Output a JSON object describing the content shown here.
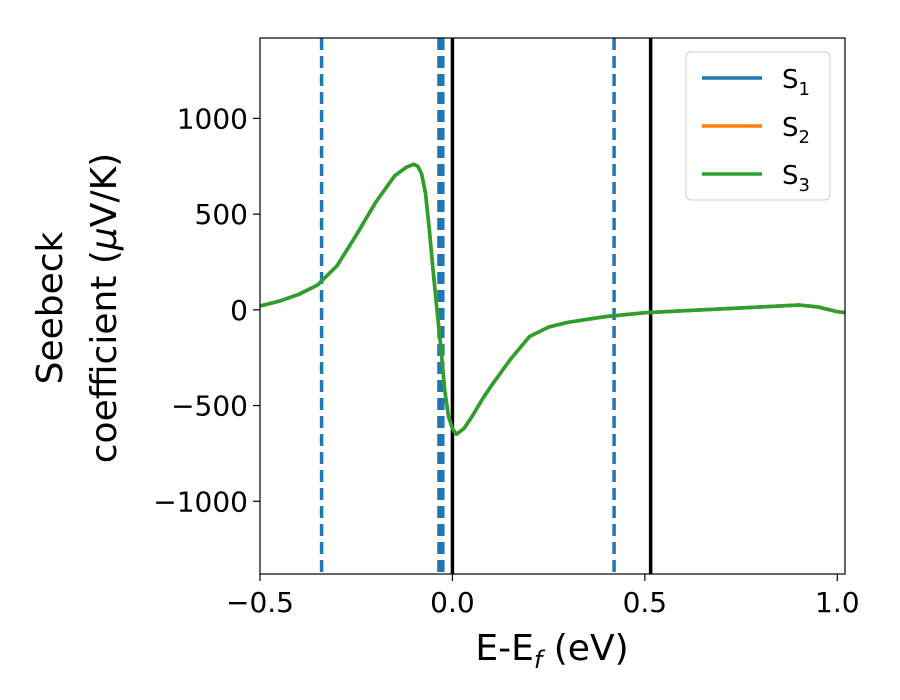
{
  "chart_data": {
    "type": "line",
    "xlabel": {
      "main": "E-E",
      "sub": "f",
      "suffix": " (eV)"
    },
    "ylabel": {
      "line1": "Seebeck",
      "line2_prefix": "coefficient  (",
      "line2_mu": "μ",
      "line2_suffix": "V/K)"
    },
    "xlim": [
      -0.5,
      1.02
    ],
    "ylim": [
      -1380,
      1420
    ],
    "xticks": [
      -0.5,
      0.0,
      0.5,
      1.0
    ],
    "xtick_labels": [
      "−0.5",
      "0.0",
      "0.5",
      "1.0"
    ],
    "yticks": [
      -1000,
      -500,
      0,
      500,
      1000
    ],
    "ytick_labels": [
      "−1000",
      "−500",
      "0",
      "500",
      "1000"
    ],
    "grid": false,
    "legend_position": "top-right",
    "vlines": [
      {
        "x": -0.34,
        "style": "dashed",
        "color": "#1f77b4"
      },
      {
        "x": -0.035,
        "style": "dashed",
        "color": "#1f77b4"
      },
      {
        "x": -0.03,
        "style": "dashed",
        "color": "#1f77b4"
      },
      {
        "x": -0.025,
        "style": "dashed",
        "color": "#1f77b4"
      },
      {
        "x": 0.42,
        "style": "dashed",
        "color": "#1f77b4"
      },
      {
        "x": 0.0,
        "style": "solid",
        "color": "#000000"
      },
      {
        "x": 0.515,
        "style": "solid",
        "color": "#000000"
      }
    ],
    "series": [
      {
        "name": "S",
        "sub": "1",
        "color": "#1f77b4",
        "x": [
          -0.5,
          -0.45,
          -0.4,
          -0.35,
          -0.3,
          -0.25,
          -0.2,
          -0.15,
          -0.12,
          -0.1,
          -0.09,
          -0.08,
          -0.07,
          -0.06,
          -0.05,
          -0.04,
          -0.03,
          -0.02,
          -0.01,
          0.0,
          0.01,
          0.03,
          0.05,
          0.08,
          0.1,
          0.15,
          0.2,
          0.25,
          0.3,
          0.35,
          0.4,
          0.45,
          0.5,
          0.6,
          0.7,
          0.8,
          0.85,
          0.9,
          0.95,
          1.0,
          1.02
        ],
        "y": [
          20,
          45,
          80,
          130,
          230,
          390,
          560,
          700,
          745,
          760,
          750,
          710,
          610,
          420,
          200,
          0,
          -200,
          -420,
          -560,
          -620,
          -650,
          -620,
          -560,
          -460,
          -400,
          -260,
          -140,
          -90,
          -65,
          -50,
          -35,
          -25,
          -15,
          -5,
          5,
          15,
          20,
          25,
          15,
          -10,
          -15
        ]
      },
      {
        "name": "S",
        "sub": "2",
        "color": "#ff7f0e",
        "x": [
          -0.5,
          -0.45,
          -0.4,
          -0.35,
          -0.3,
          -0.25,
          -0.2,
          -0.15,
          -0.12,
          -0.1,
          -0.09,
          -0.08,
          -0.07,
          -0.06,
          -0.05,
          -0.04,
          -0.03,
          -0.02,
          -0.01,
          0.0,
          0.01,
          0.03,
          0.05,
          0.08,
          0.1,
          0.15,
          0.2,
          0.25,
          0.3,
          0.35,
          0.4,
          0.45,
          0.5,
          0.6,
          0.7,
          0.8,
          0.85,
          0.9,
          0.95,
          1.0,
          1.02
        ],
        "y": [
          20,
          45,
          80,
          130,
          230,
          390,
          560,
          700,
          745,
          760,
          750,
          710,
          610,
          420,
          200,
          0,
          -200,
          -420,
          -560,
          -620,
          -650,
          -620,
          -560,
          -460,
          -400,
          -260,
          -140,
          -90,
          -65,
          -50,
          -35,
          -25,
          -15,
          -5,
          5,
          15,
          20,
          25,
          15,
          -10,
          -15
        ]
      },
      {
        "name": "S",
        "sub": "3",
        "color": "#2ca02c",
        "x": [
          -0.5,
          -0.45,
          -0.4,
          -0.35,
          -0.3,
          -0.25,
          -0.2,
          -0.15,
          -0.12,
          -0.1,
          -0.09,
          -0.08,
          -0.07,
          -0.06,
          -0.05,
          -0.04,
          -0.03,
          -0.02,
          -0.01,
          0.0,
          0.01,
          0.03,
          0.05,
          0.08,
          0.1,
          0.15,
          0.2,
          0.25,
          0.3,
          0.35,
          0.4,
          0.45,
          0.5,
          0.6,
          0.7,
          0.8,
          0.85,
          0.9,
          0.95,
          1.0,
          1.02
        ],
        "y": [
          20,
          45,
          80,
          130,
          230,
          390,
          560,
          700,
          745,
          760,
          750,
          710,
          610,
          420,
          200,
          0,
          -200,
          -420,
          -560,
          -620,
          -650,
          -620,
          -560,
          -460,
          -400,
          -260,
          -140,
          -90,
          -65,
          -50,
          -35,
          -25,
          -15,
          -5,
          5,
          15,
          20,
          25,
          15,
          -10,
          -15
        ]
      }
    ]
  }
}
